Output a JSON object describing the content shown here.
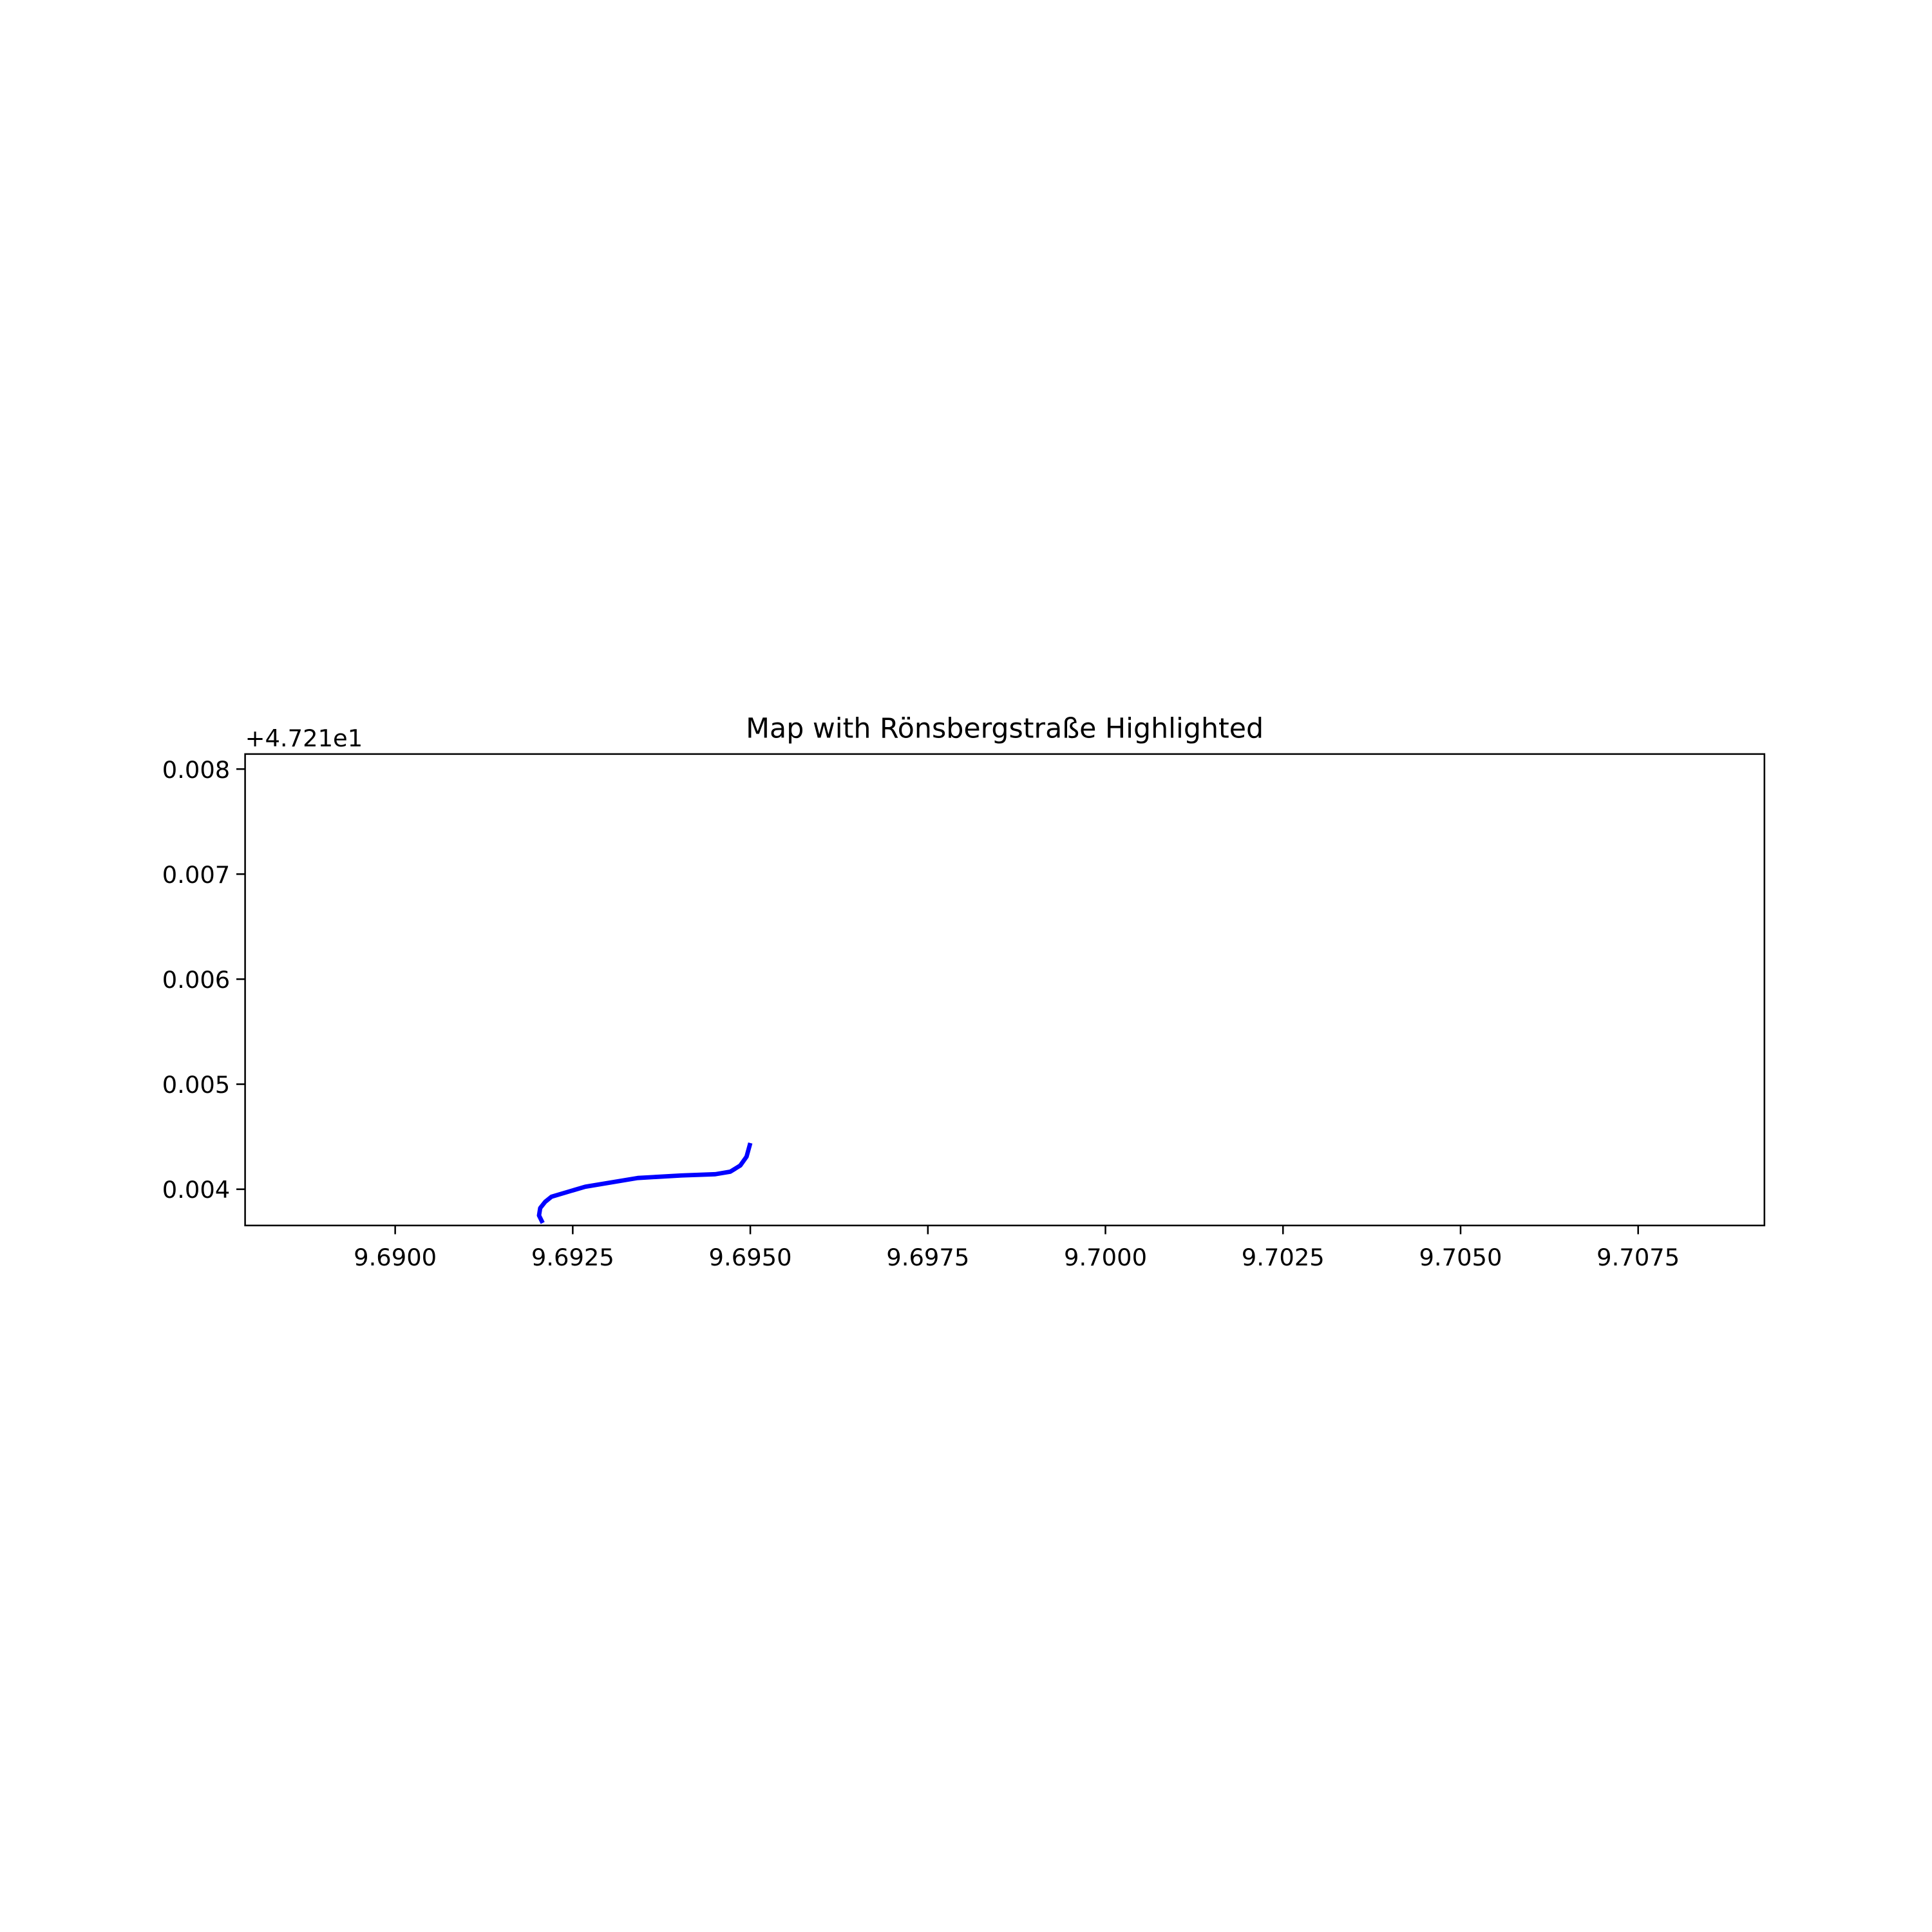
{
  "chart_data": {
    "type": "line",
    "title": "Map with Rönsbergstraße Highlighted",
    "y_offset_label": "+4.721e1",
    "x": [
      9.692077,
      9.692025,
      9.692042,
      9.692113,
      9.692201,
      9.692676,
      9.693415,
      9.694032,
      9.694507,
      9.694718,
      9.694859,
      9.694947,
      9.695
    ],
    "series": [
      {
        "color": "blue",
        "values": [
          0.003679,
          0.00375,
          0.003821,
          0.003881,
          0.003929,
          0.004024,
          0.004107,
          0.004131,
          0.004143,
          0.004167,
          0.004226,
          0.00431,
          0.00444
        ]
      }
    ],
    "xlim": [
      9.687887,
      9.709278
    ],
    "ylim": [
      0.003655,
      0.008143
    ],
    "xticks": [
      {
        "value": 9.69,
        "label": "9.6900"
      },
      {
        "value": 9.6925,
        "label": "9.6925"
      },
      {
        "value": 9.695,
        "label": "9.6950"
      },
      {
        "value": 9.6975,
        "label": "9.6975"
      },
      {
        "value": 9.7,
        "label": "9.7000"
      },
      {
        "value": 9.7025,
        "label": "9.7025"
      },
      {
        "value": 9.705,
        "label": "9.7050"
      },
      {
        "value": 9.7075,
        "label": "9.7075"
      }
    ],
    "yticks": [
      0.004,
      0.005,
      0.006,
      0.007,
      0.008
    ]
  }
}
